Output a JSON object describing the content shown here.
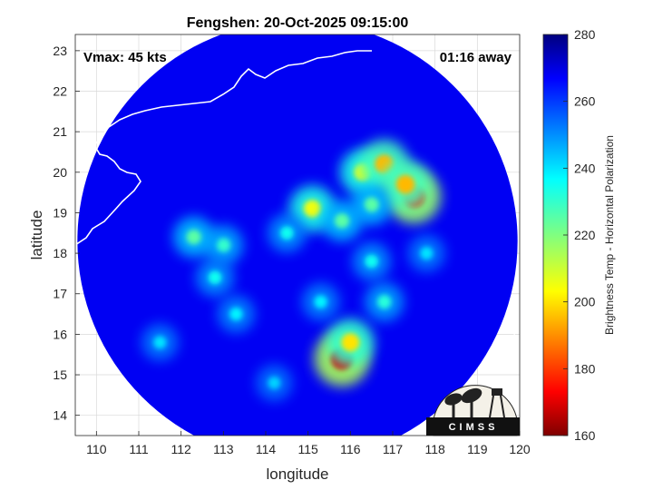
{
  "chart_data": {
    "type": "heatmap",
    "title": "Fengshen: 20-Oct-2025 09:15:00",
    "xlabel": "longitude",
    "ylabel": "latitude",
    "xlim": [
      109.5,
      120
    ],
    "ylim": [
      13.5,
      23.4
    ],
    "xticks": [
      "110",
      "111",
      "112",
      "113",
      "114",
      "115",
      "116",
      "117",
      "118",
      "119",
      "120"
    ],
    "yticks": [
      "14",
      "15",
      "16",
      "17",
      "18",
      "19",
      "20",
      "21",
      "22",
      "23"
    ],
    "grid": true,
    "annotations": {
      "vmax": "Vmax: 45 kts",
      "away": "01:16 away"
    },
    "colorbar": {
      "label": "Brightness Temp - Horizontal Polarization",
      "range": [
        160,
        280
      ],
      "ticks": [
        "160",
        "180",
        "200",
        "220",
        "240",
        "260",
        "280"
      ]
    },
    "swath": {
      "center_lon": 114.75,
      "center_lat": 18.3,
      "radius_deg": 5.2,
      "background_temp": 268
    },
    "features": [
      {
        "lon": 116.3,
        "lat": 20.0,
        "temp": 205
      },
      {
        "lon": 116.8,
        "lat": 20.2,
        "temp": 195
      },
      {
        "lon": 117.5,
        "lat": 19.4,
        "temp": 175
      },
      {
        "lon": 117.3,
        "lat": 19.7,
        "temp": 195
      },
      {
        "lon": 115.1,
        "lat": 19.1,
        "temp": 205
      },
      {
        "lon": 115.8,
        "lat": 15.4,
        "temp": 170
      },
      {
        "lon": 116.0,
        "lat": 15.8,
        "temp": 200
      },
      {
        "lon": 116.5,
        "lat": 19.2,
        "temp": 225
      },
      {
        "lon": 115.8,
        "lat": 18.8,
        "temp": 225
      },
      {
        "lon": 114.5,
        "lat": 18.5,
        "temp": 235
      },
      {
        "lon": 113.0,
        "lat": 18.2,
        "temp": 230
      },
      {
        "lon": 112.3,
        "lat": 18.4,
        "temp": 225
      },
      {
        "lon": 112.8,
        "lat": 17.4,
        "temp": 235
      },
      {
        "lon": 113.3,
        "lat": 16.5,
        "temp": 238
      },
      {
        "lon": 116.8,
        "lat": 16.8,
        "temp": 232
      },
      {
        "lon": 116.5,
        "lat": 17.8,
        "temp": 235
      },
      {
        "lon": 115.3,
        "lat": 16.8,
        "temp": 238
      },
      {
        "lon": 117.8,
        "lat": 18.0,
        "temp": 240
      },
      {
        "lon": 111.5,
        "lat": 15.8,
        "temp": 240
      },
      {
        "lon": 114.2,
        "lat": 14.8,
        "temp": 242
      }
    ],
    "logo": {
      "text": "CIMSS"
    }
  }
}
